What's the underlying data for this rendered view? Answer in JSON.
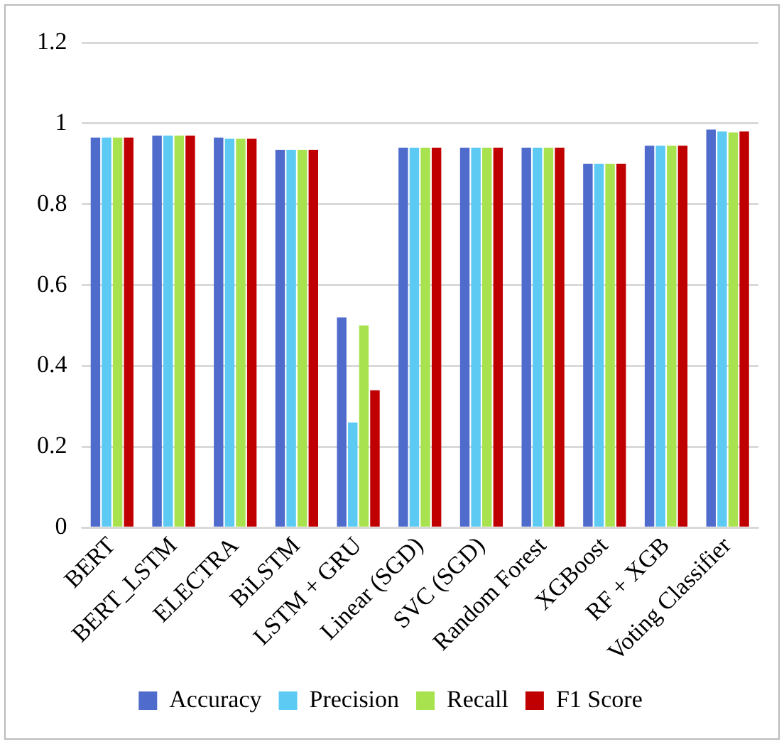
{
  "chart_data": {
    "type": "bar",
    "categories": [
      "BERT",
      "BERT_LSTM",
      "ELECTRA",
      "BiLSTM",
      "LSTM + GRU",
      "Linear (SGD)",
      "SVC (SGD)",
      "Random Forest",
      "XGBoost",
      "RF + XGB",
      "Voting Classifier"
    ],
    "series": [
      {
        "name": "Accuracy",
        "color": "#4f6bcc",
        "values": [
          0.965,
          0.97,
          0.965,
          0.935,
          0.52,
          0.94,
          0.94,
          0.94,
          0.9,
          0.945,
          0.985
        ]
      },
      {
        "name": "Precision",
        "color": "#5ccaf2",
        "values": [
          0.965,
          0.97,
          0.962,
          0.935,
          0.26,
          0.94,
          0.94,
          0.94,
          0.9,
          0.945,
          0.98
        ]
      },
      {
        "name": "Recall",
        "color": "#a8e24f",
        "values": [
          0.965,
          0.97,
          0.962,
          0.935,
          0.5,
          0.94,
          0.94,
          0.94,
          0.9,
          0.945,
          0.978
        ]
      },
      {
        "name": "F1 Score",
        "color": "#c00000",
        "values": [
          0.965,
          0.97,
          0.962,
          0.935,
          0.34,
          0.94,
          0.94,
          0.94,
          0.9,
          0.945,
          0.98
        ]
      }
    ],
    "ylim": [
      0,
      1.2
    ],
    "yticks": [
      0,
      {
        "value": 0.2,
        "label": "0.2"
      },
      {
        "value": 0.4,
        "label": "0.4"
      },
      {
        "value": 0.6,
        "label": "0.6"
      },
      {
        "value": 0.8,
        "label": "0.8"
      },
      1,
      {
        "value": 1.2,
        "label": "1.2"
      }
    ],
    "grid": "y",
    "legend": "bottom"
  }
}
